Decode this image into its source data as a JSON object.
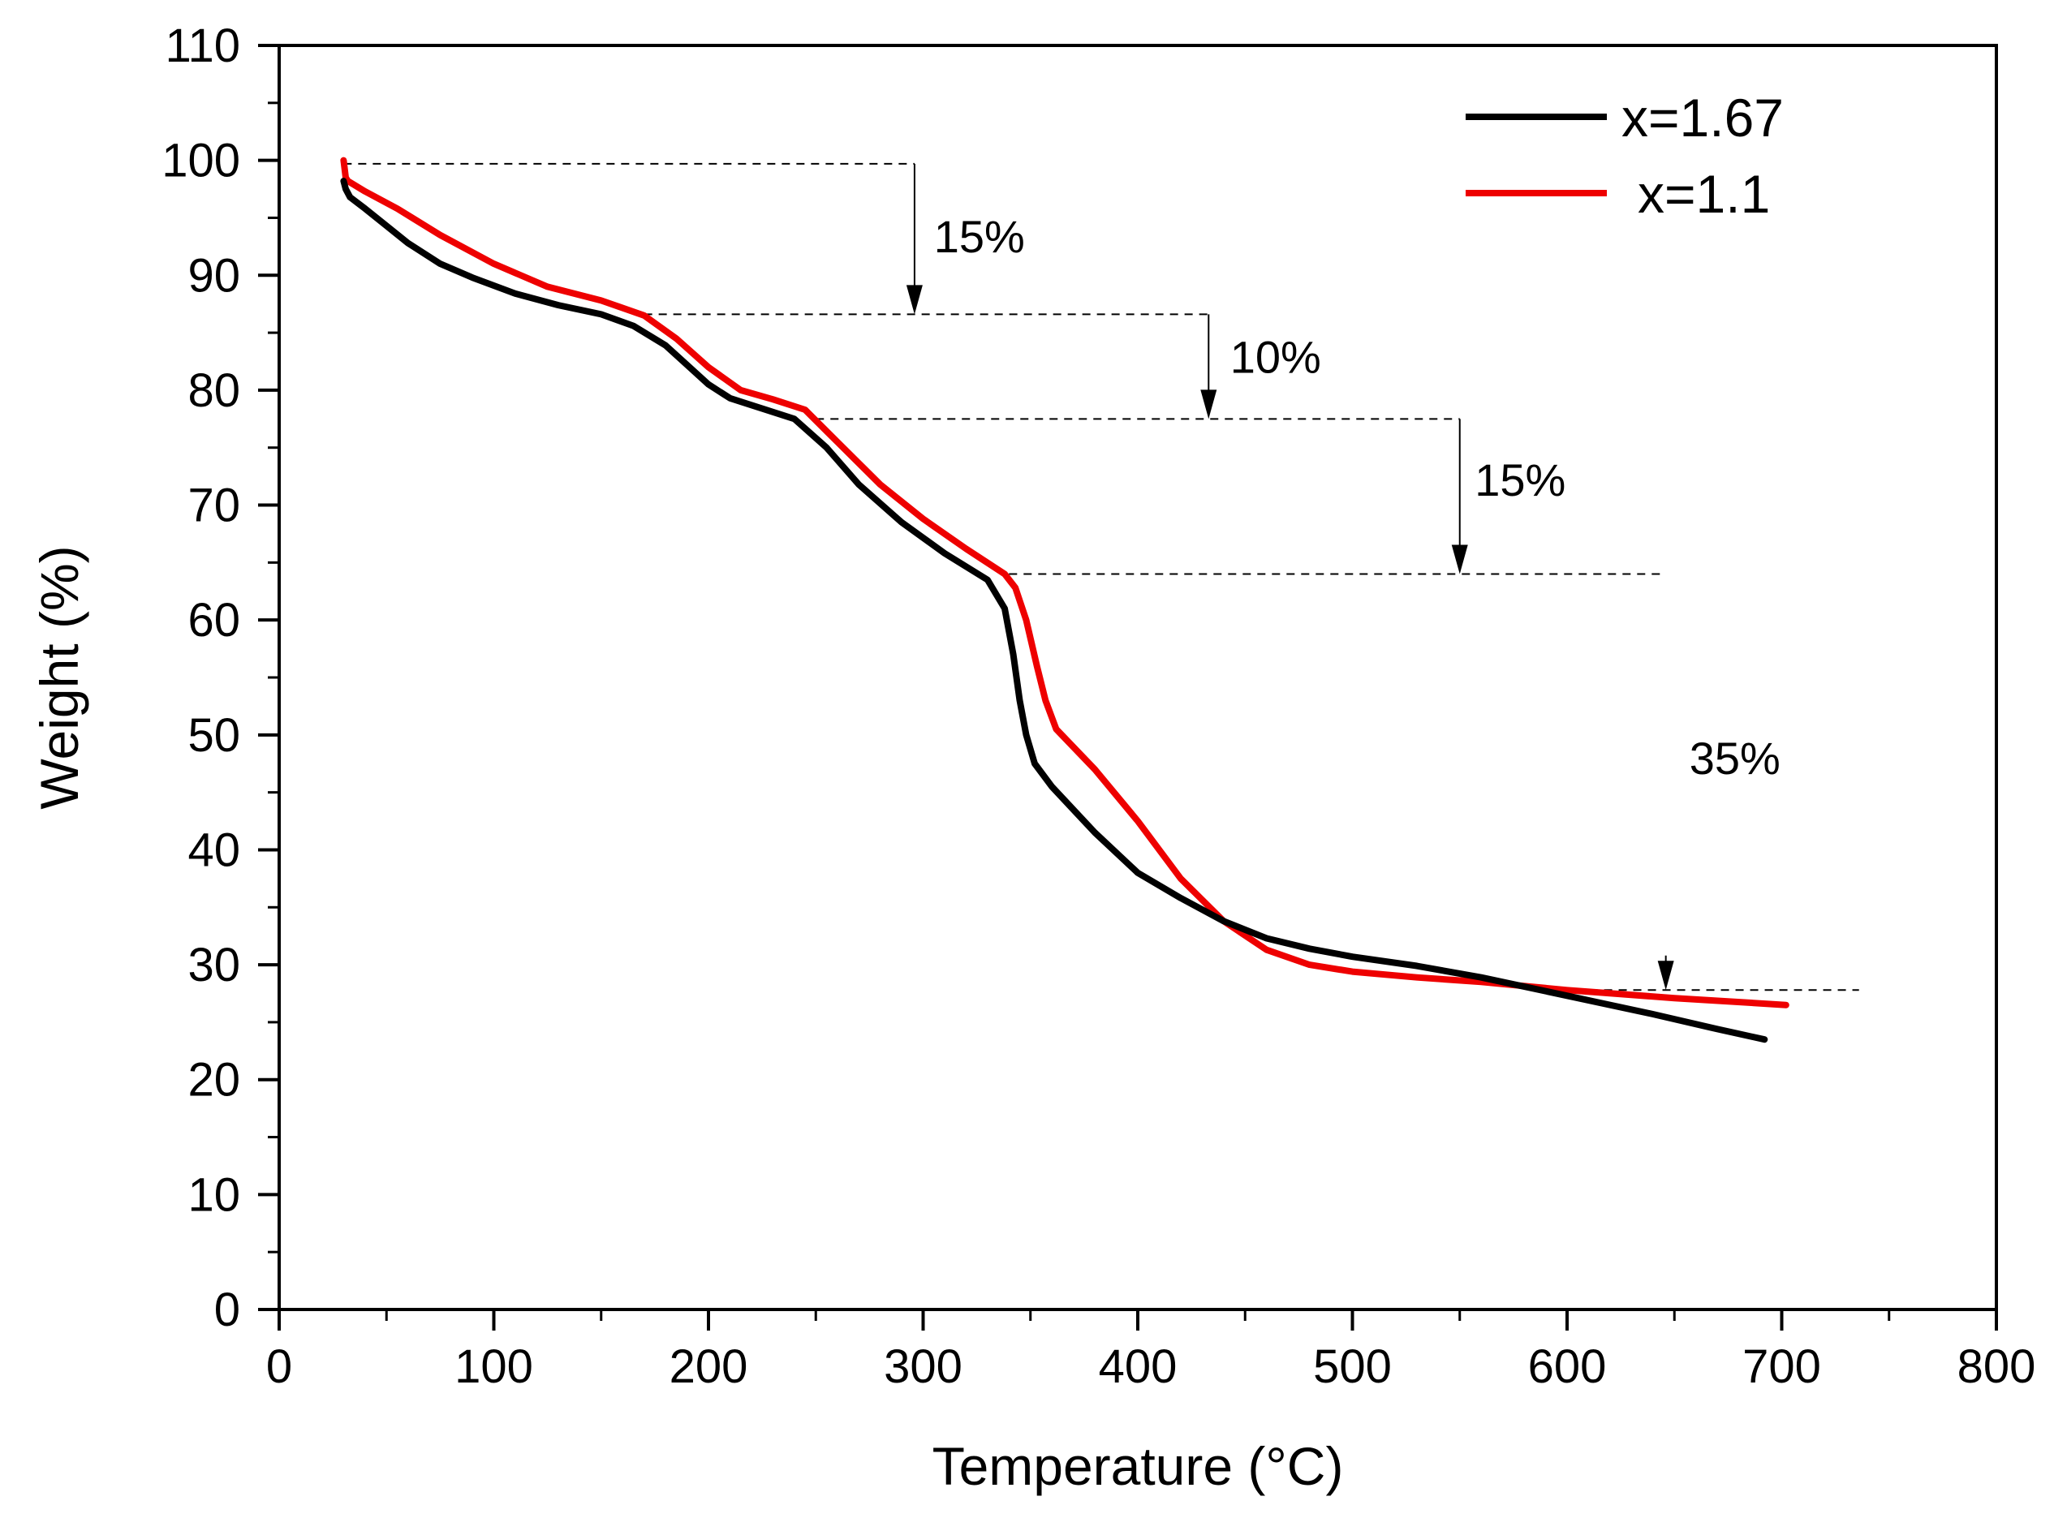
{
  "chart_data": {
    "type": "line",
    "title": "",
    "xlabel": "Temperature (°C)",
    "ylabel": "Weight (%)",
    "xlim": [
      0,
      800
    ],
    "ylim": [
      0,
      110
    ],
    "x_ticks": [
      0,
      100,
      200,
      300,
      400,
      500,
      600,
      700,
      800
    ],
    "y_ticks": [
      0,
      10,
      20,
      30,
      40,
      50,
      60,
      70,
      80,
      90,
      100,
      110
    ],
    "grid": false,
    "legend_position": "top-right",
    "series": [
      {
        "name": "x=1.67",
        "color": "#000000",
        "x": [
          30,
          31,
          33,
          40,
          50,
          60,
          75,
          90,
          110,
          130,
          150,
          165,
          180,
          190,
          200,
          210,
          220,
          240,
          255,
          270,
          290,
          310,
          330,
          338,
          342,
          345,
          348,
          352,
          360,
          380,
          400,
          420,
          440,
          460,
          480,
          500,
          530,
          560,
          600,
          640,
          670,
          692
        ],
        "y": [
          98.2,
          97.5,
          96.8,
          95.8,
          94.3,
          92.8,
          91.0,
          89.8,
          88.4,
          87.4,
          86.6,
          85.6,
          83.9,
          82.2,
          80.5,
          79.3,
          78.7,
          77.5,
          75.0,
          71.8,
          68.5,
          65.8,
          63.5,
          61.0,
          57.0,
          53.0,
          50.0,
          47.5,
          45.5,
          41.5,
          38.0,
          35.8,
          33.8,
          32.3,
          31.4,
          30.7,
          29.9,
          28.9,
          27.3,
          25.7,
          24.4,
          23.5
        ]
      },
      {
        "name": "x=1.1",
        "color": "#ee0000",
        "x": [
          30,
          31,
          32,
          40,
          55,
          75,
          100,
          125,
          150,
          170,
          185,
          200,
          215,
          230,
          245,
          260,
          280,
          300,
          320,
          338,
          343,
          348,
          353,
          357,
          362,
          380,
          400,
          420,
          440,
          460,
          480,
          500,
          530,
          560,
          600,
          650,
          702
        ],
        "y": [
          100.0,
          98.5,
          98.2,
          97.3,
          95.8,
          93.5,
          91.0,
          89.0,
          87.8,
          86.5,
          84.5,
          82.0,
          80.0,
          79.2,
          78.3,
          75.5,
          71.8,
          68.8,
          66.2,
          64.0,
          62.8,
          60.0,
          56.0,
          53.0,
          50.5,
          47.0,
          42.5,
          37.5,
          33.8,
          31.3,
          30.0,
          29.4,
          28.9,
          28.5,
          27.8,
          27.1,
          26.5
        ]
      }
    ],
    "annotations": [
      {
        "text": "15%",
        "x": 305,
        "y": 92
      },
      {
        "text": "10%",
        "x": 443,
        "y": 81.5
      },
      {
        "text": "15%",
        "x": 557,
        "y": 70.8
      },
      {
        "text": "35%",
        "x": 657,
        "y": 46.6
      }
    ],
    "reference_lines": [
      {
        "y": 99.7,
        "x_start": 30,
        "x_end": 296
      },
      {
        "y": 86.6,
        "x_start": 170,
        "x_end": 433
      },
      {
        "y": 77.5,
        "x_start": 250,
        "x_end": 550
      },
      {
        "y": 64.0,
        "x_start": 340,
        "x_end": 646
      },
      {
        "y": 27.8,
        "x_start": 590,
        "x_end": 736
      }
    ],
    "arrows": [
      {
        "x": 296,
        "y_from": 99.7,
        "y_to": 86.6
      },
      {
        "x": 433,
        "y_from": 86.6,
        "y_to": 77.5
      },
      {
        "x": 550,
        "y_from": 77.5,
        "y_to": 64.0
      },
      {
        "x": 646,
        "y_from": 30.8,
        "y_to": 27.8
      }
    ]
  }
}
